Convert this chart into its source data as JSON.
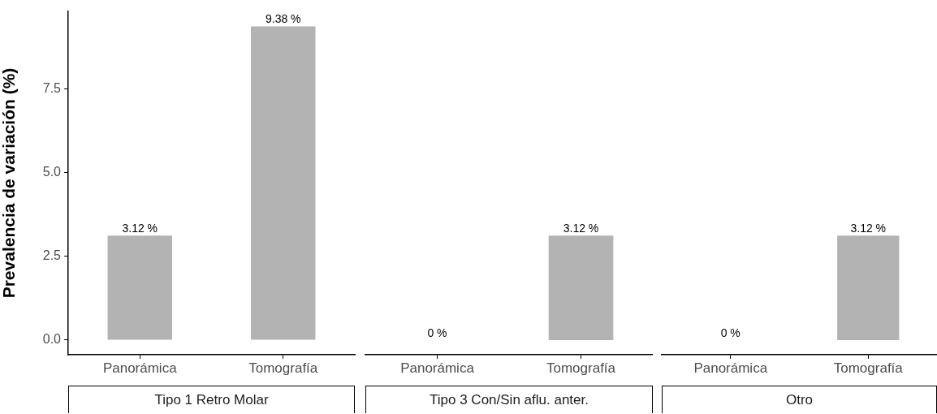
{
  "chart_data": [
    {
      "type": "bar",
      "title": "Tipo 1 Retro Molar",
      "ylabel": "Prevalencia de variación (%)",
      "categories": [
        "Panorámica",
        "Tomografía"
      ],
      "values": [
        3.12,
        9.38
      ],
      "value_labels": [
        "3.12 %",
        "9.38 %"
      ],
      "color": "#b3b3b3",
      "ylim": [
        -0.44,
        9.83
      ],
      "yticks": [
        {
          "value": 0,
          "label": "0.0"
        },
        {
          "value": 2.5,
          "label": "2.5"
        },
        {
          "value": 5,
          "label": "5.0"
        },
        {
          "value": 7.5,
          "label": "7.5"
        }
      ]
    },
    {
      "type": "bar",
      "title": "Tipo 3 Con/Sin aflu. anter.",
      "categories": [
        "Panorámica",
        "Tomografía"
      ],
      "values": [
        0,
        3.12
      ],
      "value_labels": [
        "0 %",
        "3.12 %"
      ],
      "color": "#b3b3b3",
      "tick_labels": "x"
    },
    {
      "type": "bar",
      "title": "Otro",
      "categories": [
        "Panorámica",
        "Tomografía"
      ],
      "values": [
        0,
        3.12
      ],
      "value_labels": [
        "0 %",
        "3.12 %"
      ],
      "color": "#b3b3b3",
      "tick_labels": "x"
    }
  ]
}
